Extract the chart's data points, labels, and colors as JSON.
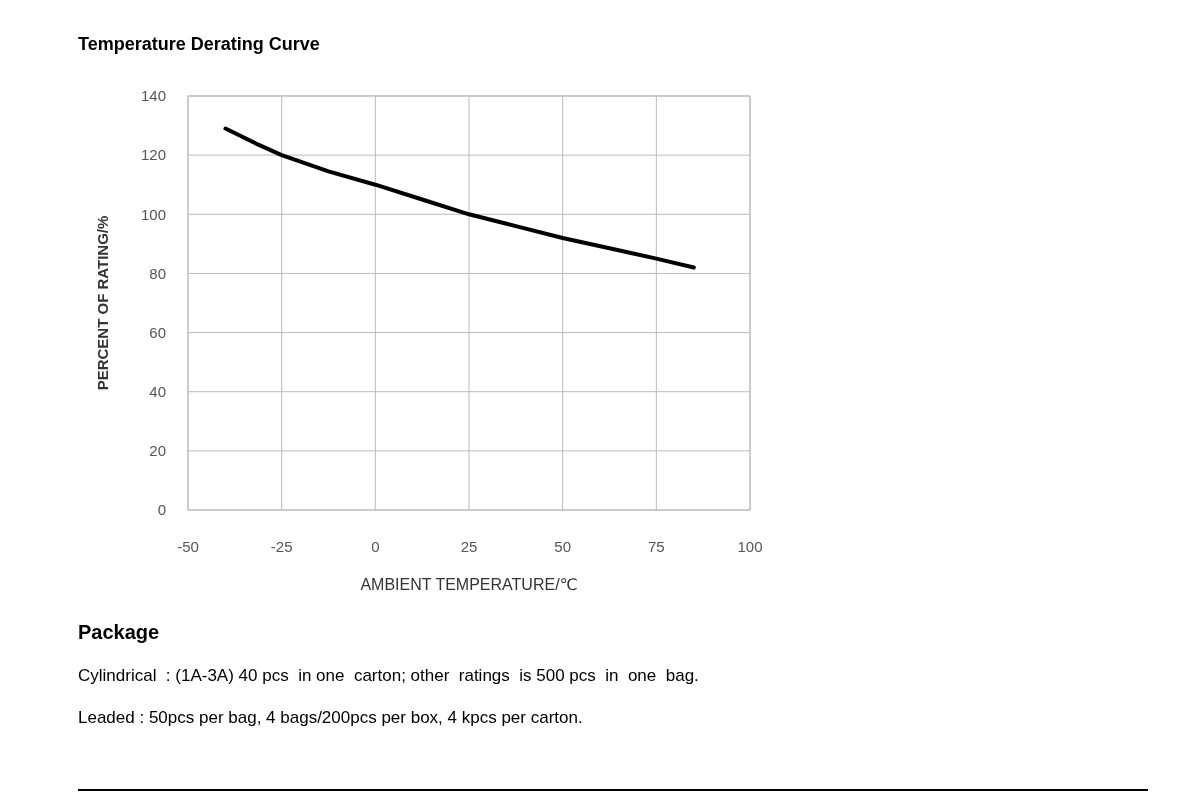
{
  "chart_data": {
    "type": "line",
    "title": "Temperature Derating Curve",
    "xlabel": "AMBIENT TEMPERATURE/℃",
    "ylabel": "PERCENT OF RATING/%",
    "x": [
      -40,
      -32,
      -25,
      -12.5,
      0,
      12.5,
      25,
      37.5,
      50,
      62.5,
      75,
      85
    ],
    "series": [
      {
        "color": "#000000",
        "values": [
          129,
          124,
          120,
          114.5,
          110,
          105,
          100,
          96,
          92,
          88.5,
          85,
          82
        ]
      }
    ],
    "xlim": [
      -50,
      100
    ],
    "xticks": [
      -50,
      -25,
      0,
      25,
      50,
      75,
      100
    ],
    "ylim": [
      0,
      140
    ],
    "yticks": [
      0,
      20,
      40,
      60,
      80,
      100,
      120,
      140
    ],
    "grid": true,
    "marker": "none",
    "line_style": "solid",
    "annotations": [
      "Package",
      "Cylindrical  : (1A-3A) 40 pcs  in one  carton; other  ratings  is 500 pcs  in  one  bag.",
      "Leaded : 50pcs per bag, 4 bags/200pcs per box, 4 kpcs per carton."
    ]
  }
}
